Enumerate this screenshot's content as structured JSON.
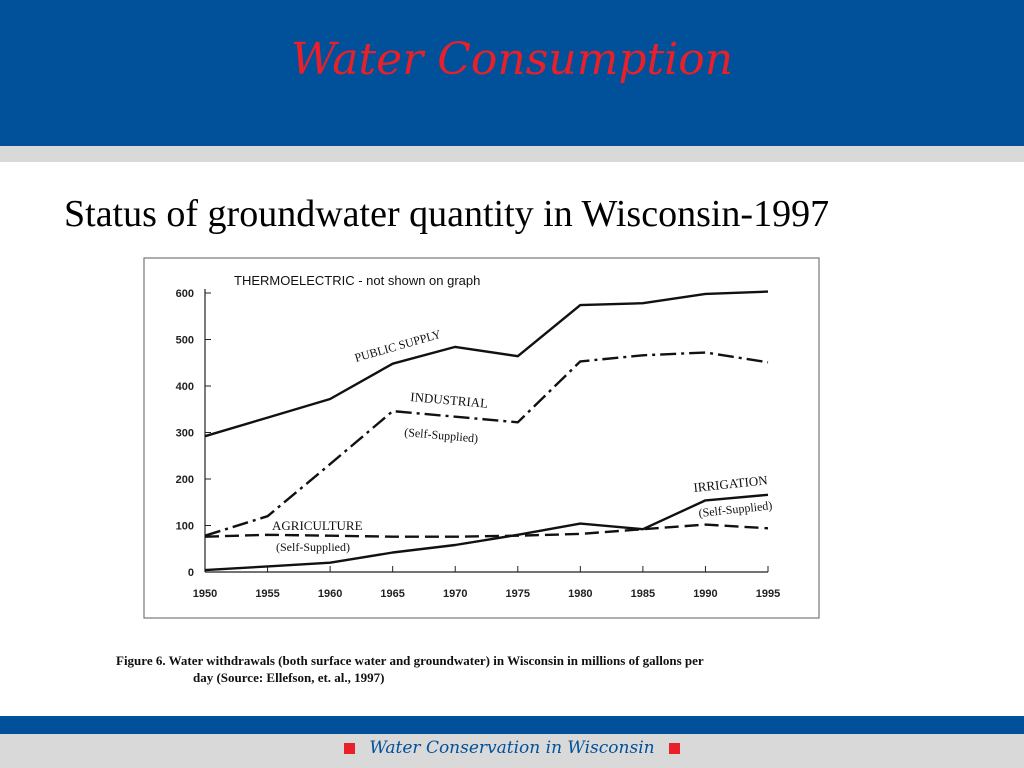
{
  "header": {
    "title": "Water Consumption"
  },
  "subtitle": "Status of groundwater quantity in Wisconsin-1997",
  "figure": {
    "note": "THERMOELECTRIC - not shown on graph",
    "caption_line1": "Figure 6.  Water withdrawals (both surface water and groundwater) in Wisconsin in millions of gallons per",
    "caption_line2": "day (Source: Ellefson, et.  al., 1997)"
  },
  "footer": {
    "text": "Water Conservation in Wisconsin"
  },
  "colors": {
    "header_bg": "#00519a",
    "title": "#e8202a",
    "band": "#d9d9d9",
    "line": "#111111"
  },
  "chart_data": {
    "type": "line",
    "x": [
      1950,
      1955,
      1960,
      1965,
      1970,
      1975,
      1980,
      1985,
      1990,
      1995
    ],
    "ylim": [
      0,
      600
    ],
    "yticks": [
      0,
      100,
      200,
      300,
      400,
      500,
      600
    ],
    "grid": false,
    "series": [
      {
        "name": "PUBLIC SUPPLY",
        "values": [
          292,
          332,
          372,
          448,
          484,
          464,
          574,
          578,
          598,
          603
        ],
        "style": "solid"
      },
      {
        "name": "INDUSTRIAL (Self-Supplied)",
        "values": [
          78,
          120,
          232,
          346,
          334,
          322,
          453,
          466,
          472,
          451
        ],
        "style": "dashdot"
      },
      {
        "name": "AGRICULTURE (Self-Supplied)",
        "values": [
          76,
          80,
          78,
          76,
          76,
          78,
          82,
          92,
          102,
          94
        ],
        "style": "dashed"
      },
      {
        "name": "IRRIGATION (Self-Supplied)",
        "values": [
          4,
          12,
          20,
          42,
          58,
          80,
          104,
          92,
          154,
          166
        ],
        "style": "solid"
      }
    ],
    "labels": {
      "public": "PUBLIC SUPPLY",
      "industrial": "INDUSTRIAL",
      "industrial_sub": "(Self-Supplied)",
      "agriculture": "AGRICULTURE",
      "agriculture_sub": "(Self-Supplied)",
      "irrigation": "IRRIGATION",
      "irrigation_sub": "(Self-Supplied)"
    }
  }
}
